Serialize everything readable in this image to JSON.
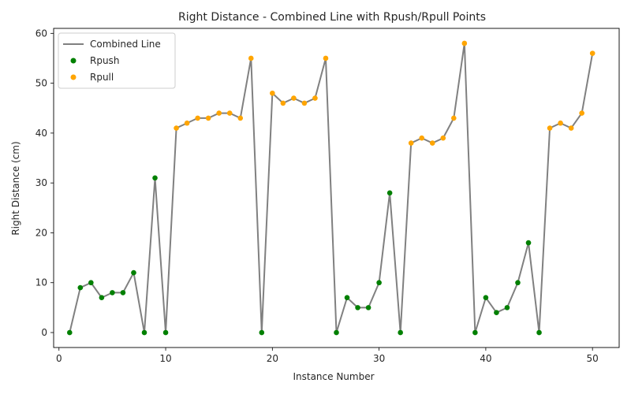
{
  "chart_data": {
    "type": "line",
    "title": "Right Distance - Combined Line with Rpush/Rpull Points",
    "xlabel": "Instance Number",
    "ylabel": "Right Distance (cm)",
    "xlim": [
      -0.5,
      52.5
    ],
    "ylim": [
      -3,
      61
    ],
    "xticks": [
      0,
      10,
      20,
      30,
      40,
      50
    ],
    "yticks": [
      0,
      10,
      20,
      30,
      40,
      50,
      60
    ],
    "grid": false,
    "legend_position": "top-left",
    "line_color": "#808080",
    "series": [
      {
        "name": "Combined Line",
        "x": [
          1,
          2,
          3,
          4,
          5,
          6,
          7,
          8,
          9,
          10,
          11,
          12,
          13,
          14,
          15,
          16,
          17,
          18,
          19,
          20,
          21,
          22,
          23,
          24,
          25,
          26,
          27,
          28,
          29,
          30,
          31,
          32,
          33,
          34,
          35,
          36,
          37,
          38,
          39,
          40,
          41,
          42,
          43,
          44,
          45,
          46,
          47,
          48,
          49,
          50
        ],
        "y": [
          0,
          9,
          10,
          7,
          8,
          8,
          12,
          0,
          31,
          0,
          41,
          42,
          43,
          43,
          44,
          44,
          43,
          55,
          0,
          48,
          46,
          47,
          46,
          47,
          55,
          0,
          7,
          5,
          5,
          10,
          28,
          0,
          38,
          39,
          38,
          39,
          43,
          58,
          0,
          7,
          4,
          5,
          10,
          18,
          0,
          41,
          42,
          41,
          44,
          56
        ]
      },
      {
        "name": "Rpush",
        "color": "#008000",
        "x": [
          1,
          2,
          3,
          4,
          5,
          6,
          7,
          8,
          9,
          10,
          19,
          26,
          27,
          28,
          29,
          30,
          31,
          32,
          39,
          40,
          41,
          42,
          43,
          44,
          45
        ],
        "y": [
          0,
          9,
          10,
          7,
          8,
          8,
          12,
          0,
          31,
          0,
          0,
          0,
          7,
          5,
          5,
          10,
          28,
          0,
          0,
          7,
          4,
          5,
          10,
          18,
          0
        ]
      },
      {
        "name": "Rpull",
        "color": "#ffa500",
        "x": [
          11,
          12,
          13,
          14,
          15,
          16,
          17,
          18,
          20,
          21,
          22,
          23,
          24,
          25,
          33,
          34,
          35,
          36,
          37,
          38,
          46,
          47,
          48,
          49,
          50
        ],
        "y": [
          41,
          42,
          43,
          43,
          44,
          44,
          43,
          55,
          48,
          46,
          47,
          46,
          47,
          55,
          38,
          39,
          38,
          39,
          43,
          58,
          41,
          42,
          41,
          44,
          56
        ]
      }
    ]
  }
}
